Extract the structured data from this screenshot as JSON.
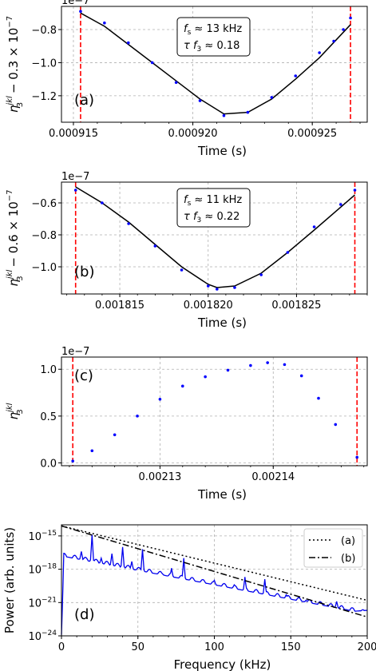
{
  "chart_data": [
    {
      "panel": "(a)",
      "type": "line",
      "xlabel": "Time (s)",
      "ylabel_main": "η",
      "ylabel_sup": "jkl",
      "ylabel_sub": "3",
      "ylabel_tail": " − 0.3 × 10",
      "ylabel_exp": "−7",
      "offset_text": "1e−7",
      "xlim": [
        0.0009145,
        0.0009273
      ],
      "ylim": [
        -1.36,
        -0.66
      ],
      "xticks": [
        0.000915,
        0.00092,
        0.000925
      ],
      "xtick_labels": [
        "0.000915",
        "0.000920",
        "0.000925"
      ],
      "yticks": [
        -0.8,
        -1.0,
        -1.2
      ],
      "ytick_labels": [
        "−0.8",
        "−1.0",
        "−1.2"
      ],
      "annotation": {
        "line1_a": "f",
        "line1_b": "s",
        "line1_c": " ≈ 13 kHz",
        "line2_a": "τ f",
        "line2_b": "3",
        "line2_c": " ≈  0.18"
      },
      "vlines": [
        0.0009153,
        0.0009266
      ],
      "curve": {
        "x": [
          0.0009153,
          0.0009163,
          0.0009173,
          0.0009183,
          0.0009193,
          0.0009203,
          0.0009213,
          0.0009223,
          0.0009233,
          0.0009243,
          0.0009253,
          0.0009266
        ],
        "y": [
          -0.7,
          -0.78,
          -0.89,
          -1.0,
          -1.11,
          -1.22,
          -1.31,
          -1.3,
          -1.22,
          -1.1,
          -0.97,
          -0.77
        ]
      },
      "dots": {
        "x": [
          0.0009153,
          0.0009163,
          0.0009173,
          0.0009183,
          0.0009193,
          0.0009203,
          0.0009213,
          0.0009223,
          0.0009233,
          0.0009243,
          0.0009253,
          0.0009259,
          0.0009263,
          0.0009266
        ],
        "y": [
          -0.69,
          -0.76,
          -0.88,
          -1.0,
          -1.12,
          -1.23,
          -1.32,
          -1.3,
          -1.21,
          -1.08,
          -0.94,
          -0.87,
          -0.8,
          -0.73
        ]
      }
    },
    {
      "panel": "(b)",
      "type": "line",
      "xlabel": "Time (s)",
      "ylabel_main": "η",
      "ylabel_sup": "jkl",
      "ylabel_sub": "3",
      "ylabel_tail": " − 0.6 × 10",
      "ylabel_exp": "−7",
      "offset_text": "1e−7",
      "xlim": [
        0.0018117,
        0.001829
      ],
      "ylim": [
        -1.17,
        -0.47
      ],
      "xticks": [
        0.001815,
        0.00182,
        0.001825
      ],
      "xtick_labels": [
        "0.001815",
        "0.001820",
        "0.001825"
      ],
      "yticks": [
        -0.6,
        -0.8,
        -1.0
      ],
      "ytick_labels": [
        "−0.6",
        "−0.8",
        "−1.0"
      ],
      "annotation": {
        "line1_a": "f",
        "line1_b": "s",
        "line1_c": " ≈ 11 kHz",
        "line2_a": "τ f",
        "line2_b": "3",
        "line2_c": " ≈  0.22"
      },
      "vlines": [
        0.0018125,
        0.0018283
      ],
      "curve": {
        "x": [
          0.0018125,
          0.001814,
          0.0018155,
          0.001817,
          0.0018185,
          0.00182,
          0.0018205,
          0.0018215,
          0.001823,
          0.0018245,
          0.001826,
          0.0018283
        ],
        "y": [
          -0.5,
          -0.6,
          -0.72,
          -0.86,
          -1.0,
          -1.11,
          -1.13,
          -1.12,
          -1.04,
          -0.91,
          -0.77,
          -0.55
        ]
      },
      "dots": {
        "x": [
          0.0018125,
          0.001814,
          0.0018155,
          0.001817,
          0.0018185,
          0.00182,
          0.0018205,
          0.0018215,
          0.001823,
          0.0018245,
          0.001826,
          0.0018275,
          0.0018283
        ],
        "y": [
          -0.52,
          -0.6,
          -0.73,
          -0.87,
          -1.02,
          -1.12,
          -1.14,
          -1.13,
          -1.05,
          -0.91,
          -0.75,
          -0.61,
          -0.52
        ]
      }
    },
    {
      "panel": "(c)",
      "type": "scatter",
      "xlabel": "Time (s)",
      "ylabel_main": "η",
      "ylabel_sup": "jkl",
      "ylabel_sub": "3",
      "ylabel_tail": "",
      "ylabel_exp": "",
      "offset_text": "1e−7",
      "xlim": [
        0.0021213,
        0.0021483
      ],
      "ylim": [
        -0.03,
        1.13
      ],
      "xticks": [
        0.00213,
        0.00214
      ],
      "xtick_labels": [
        "0.00213",
        "0.00214"
      ],
      "yticks": [
        0.0,
        0.5,
        1.0
      ],
      "ytick_labels": [
        "0.0",
        "0.5",
        "1.0"
      ],
      "vlines": [
        0.0021223,
        0.0021474
      ],
      "dots": {
        "x": [
          0.0021223,
          0.002124,
          0.002126,
          0.002128,
          0.00213,
          0.002132,
          0.002134,
          0.002136,
          0.002138,
          0.0021395,
          0.002141,
          0.0021425,
          0.002144,
          0.0021455,
          0.0021474
        ],
        "y": [
          0.02,
          0.13,
          0.3,
          0.5,
          0.68,
          0.82,
          0.92,
          0.99,
          1.04,
          1.07,
          1.05,
          0.93,
          0.69,
          0.41,
          0.06
        ]
      }
    },
    {
      "panel": "(d)",
      "type": "line",
      "xlabel": "Frequency (kHz)",
      "ylabel": "Power (arb. units)",
      "xlim": [
        0,
        200
      ],
      "ylim_log10": [
        -24,
        -14
      ],
      "yscale": "log",
      "xticks": [
        0,
        50,
        100,
        150,
        200
      ],
      "xtick_labels": [
        "0",
        "50",
        "100",
        "150",
        "200"
      ],
      "yticks_log10": [
        -15,
        -18,
        -21,
        -24
      ],
      "ytick_base": "10",
      "ytick_exps": [
        "−15",
        "−18",
        "−21",
        "−24"
      ],
      "legend": {
        "position": "top-right",
        "entries": [
          "(a)",
          "(b)"
        ]
      },
      "series": [
        {
          "name": "(a)",
          "style": "dotted",
          "x": [
            0,
            200
          ],
          "log10_y": [
            -14.1,
            -20.8
          ]
        },
        {
          "name": "(b)",
          "style": "dashdot",
          "x": [
            0,
            200
          ],
          "log10_y": [
            -14.1,
            -22.3
          ]
        }
      ],
      "spectrum_peaks": {
        "f": [
          13,
          20,
          26,
          33,
          40,
          46,
          53,
          59,
          66,
          72,
          80,
          86,
          92,
          100,
          106,
          113,
          120,
          127,
          133,
          140,
          147,
          160,
          167,
          180
        ],
        "log10_y": [
          -16.4,
          -14.9,
          -17.0,
          -16.6,
          -16.0,
          -17.3,
          -16.2,
          -18.4,
          -18.4,
          -17.9,
          -17.0,
          -19.0,
          -19.4,
          -19.0,
          -19.8,
          -19.4,
          -18.7,
          -20.4,
          -18.9,
          -20.6,
          -20.3,
          -20.8,
          -21.3,
          -20.9
        ]
      }
    }
  ],
  "colors": {
    "data_dots": "#0000ff",
    "model_line": "#000000",
    "vline": "#ff0000",
    "spectrum": "#0000ee"
  }
}
